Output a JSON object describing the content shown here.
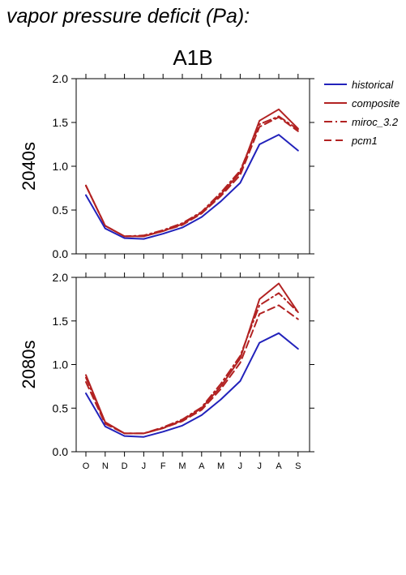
{
  "page_title": "vapor pressure deficit (Pa):",
  "chart_data": {
    "type": "line",
    "title": "A1B",
    "categories": [
      "O",
      "N",
      "D",
      "J",
      "F",
      "M",
      "A",
      "M",
      "J",
      "J",
      "A",
      "S"
    ],
    "ylim": [
      0,
      2
    ],
    "yticks": [
      "0.0",
      "0.5",
      "1.0",
      "1.5",
      "2.0"
    ],
    "grid": false,
    "legend_position": "top-right",
    "legend": [
      {
        "name": "historical",
        "color": "#2222bb",
        "dash": "solid"
      },
      {
        "name": "composite",
        "color": "#b22222",
        "dash": "solid"
      },
      {
        "name": "miroc_3.2",
        "color": "#b22222",
        "dash": "dashdot"
      },
      {
        "name": "pcm1",
        "color": "#b22222",
        "dash": "dashed"
      }
    ],
    "panels": [
      {
        "label": "2040s",
        "series": [
          {
            "name": "historical",
            "values": [
              0.67,
              0.29,
              0.18,
              0.17,
              0.23,
              0.3,
              0.42,
              0.6,
              0.81,
              1.25,
              1.36,
              1.18
            ]
          },
          {
            "name": "composite",
            "values": [
              0.78,
              0.32,
              0.2,
              0.2,
              0.26,
              0.34,
              0.47,
              0.68,
              0.93,
              1.52,
              1.65,
              1.43
            ]
          },
          {
            "name": "miroc_3.2",
            "values": [
              0.78,
              0.32,
              0.2,
              0.21,
              0.27,
              0.35,
              0.48,
              0.7,
              0.95,
              1.48,
              1.57,
              1.42
            ]
          },
          {
            "name": "pcm1",
            "values": [
              0.78,
              0.32,
              0.2,
              0.2,
              0.26,
              0.33,
              0.46,
              0.66,
              0.9,
              1.45,
              1.56,
              1.4
            ]
          }
        ]
      },
      {
        "label": "2080s",
        "series": [
          {
            "name": "historical",
            "values": [
              0.67,
              0.29,
              0.18,
              0.17,
              0.23,
              0.3,
              0.42,
              0.6,
              0.81,
              1.25,
              1.36,
              1.18
            ]
          },
          {
            "name": "composite",
            "values": [
              0.88,
              0.34,
              0.21,
              0.21,
              0.27,
              0.36,
              0.5,
              0.75,
              1.07,
              1.75,
              1.93,
              1.6
            ]
          },
          {
            "name": "miroc_3.2",
            "values": [
              0.85,
              0.33,
              0.21,
              0.21,
              0.28,
              0.37,
              0.51,
              0.78,
              1.1,
              1.68,
              1.82,
              1.6
            ]
          },
          {
            "name": "pcm1",
            "values": [
              0.8,
              0.32,
              0.21,
              0.21,
              0.27,
              0.35,
              0.48,
              0.72,
              1.02,
              1.58,
              1.68,
              1.52
            ]
          }
        ]
      }
    ]
  }
}
